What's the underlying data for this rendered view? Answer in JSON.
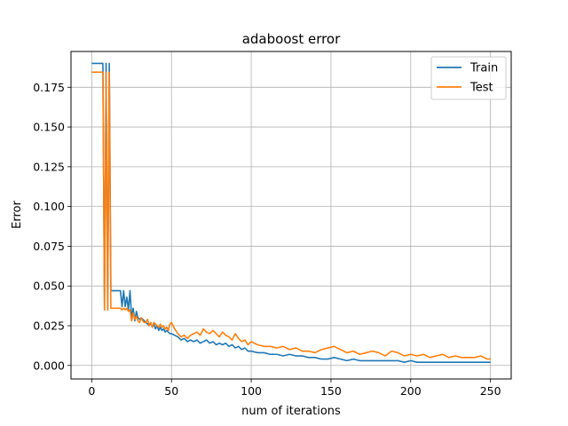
{
  "chart_data": {
    "type": "line",
    "title": "adaboost error",
    "xlabel": "num of iterations",
    "ylabel": "Error",
    "xlim": [
      -13,
      263
    ],
    "ylim": [
      -0.0085,
      0.1975
    ],
    "xticks": [
      0,
      50,
      100,
      150,
      200,
      250
    ],
    "yticks": [
      0.0,
      0.025,
      0.05,
      0.075,
      0.1,
      0.125,
      0.15,
      0.175
    ],
    "ytick_labels": [
      "0.000",
      "0.025",
      "0.050",
      "0.075",
      "0.100",
      "0.125",
      "0.150",
      "0.175"
    ],
    "grid": true,
    "legend_position": "top-right",
    "series": [
      {
        "name": "Train",
        "color": "#1f77b4",
        "x": [
          0,
          1,
          2,
          3,
          4,
          5,
          6,
          7,
          8,
          9,
          10,
          11,
          12,
          13,
          14,
          15,
          16,
          17,
          18,
          19,
          20,
          21,
          22,
          23,
          24,
          25,
          26,
          27,
          28,
          29,
          30,
          31,
          32,
          33,
          34,
          35,
          36,
          37,
          38,
          39,
          40,
          41,
          42,
          43,
          44,
          45,
          46,
          47,
          48,
          49,
          50,
          52,
          54,
          56,
          58,
          60,
          62,
          64,
          66,
          68,
          70,
          72,
          74,
          76,
          78,
          80,
          82,
          84,
          86,
          88,
          90,
          92,
          94,
          96,
          98,
          100,
          104,
          108,
          112,
          116,
          120,
          124,
          128,
          132,
          136,
          140,
          144,
          148,
          152,
          156,
          160,
          164,
          168,
          172,
          176,
          180,
          184,
          188,
          192,
          196,
          200,
          204,
          208,
          212,
          216,
          220,
          224,
          228,
          232,
          236,
          240,
          244,
          248,
          250
        ],
        "y": [
          0.19,
          0.19,
          0.19,
          0.19,
          0.19,
          0.19,
          0.19,
          0.19,
          0.035,
          0.19,
          0.035,
          0.19,
          0.047,
          0.047,
          0.047,
          0.047,
          0.047,
          0.047,
          0.047,
          0.037,
          0.047,
          0.037,
          0.043,
          0.035,
          0.047,
          0.03,
          0.036,
          0.028,
          0.034,
          0.03,
          0.029,
          0.03,
          0.029,
          0.028,
          0.027,
          0.026,
          0.025,
          0.027,
          0.024,
          0.026,
          0.023,
          0.025,
          0.022,
          0.024,
          0.022,
          0.023,
          0.021,
          0.022,
          0.021,
          0.02,
          0.02,
          0.019,
          0.018,
          0.016,
          0.017,
          0.015,
          0.016,
          0.015,
          0.016,
          0.014,
          0.015,
          0.016,
          0.014,
          0.015,
          0.013,
          0.014,
          0.013,
          0.014,
          0.012,
          0.013,
          0.011,
          0.012,
          0.01,
          0.011,
          0.009,
          0.009,
          0.008,
          0.008,
          0.007,
          0.007,
          0.006,
          0.007,
          0.006,
          0.006,
          0.005,
          0.005,
          0.004,
          0.004,
          0.005,
          0.004,
          0.003,
          0.004,
          0.003,
          0.003,
          0.003,
          0.003,
          0.003,
          0.003,
          0.003,
          0.002,
          0.003,
          0.002,
          0.002,
          0.002,
          0.002,
          0.002,
          0.002,
          0.002,
          0.002,
          0.002,
          0.002,
          0.002,
          0.002,
          0.002
        ]
      },
      {
        "name": "Test",
        "color": "#ff7f0e",
        "x": [
          0,
          1,
          2,
          3,
          4,
          5,
          6,
          7,
          8,
          9,
          10,
          11,
          12,
          13,
          14,
          15,
          16,
          17,
          18,
          19,
          20,
          21,
          22,
          23,
          24,
          25,
          26,
          27,
          28,
          29,
          30,
          31,
          32,
          33,
          34,
          35,
          36,
          37,
          38,
          39,
          40,
          41,
          42,
          43,
          44,
          45,
          46,
          47,
          48,
          49,
          50,
          52,
          54,
          56,
          58,
          60,
          62,
          64,
          66,
          68,
          70,
          72,
          74,
          76,
          78,
          80,
          82,
          84,
          86,
          88,
          90,
          92,
          94,
          96,
          98,
          100,
          104,
          108,
          112,
          116,
          120,
          124,
          128,
          132,
          136,
          140,
          144,
          148,
          152,
          156,
          160,
          164,
          168,
          172,
          176,
          180,
          184,
          188,
          192,
          196,
          200,
          204,
          208,
          212,
          216,
          220,
          224,
          228,
          232,
          236,
          240,
          244,
          248,
          250
        ],
        "y": [
          0.1845,
          0.1845,
          0.1845,
          0.1845,
          0.1845,
          0.1845,
          0.1845,
          0.1845,
          0.035,
          0.1845,
          0.035,
          0.1845,
          0.036,
          0.036,
          0.036,
          0.036,
          0.036,
          0.036,
          0.036,
          0.035,
          0.036,
          0.035,
          0.036,
          0.034,
          0.035,
          0.028,
          0.033,
          0.029,
          0.031,
          0.028,
          0.027,
          0.03,
          0.028,
          0.027,
          0.027,
          0.029,
          0.025,
          0.027,
          0.024,
          0.027,
          0.026,
          0.025,
          0.024,
          0.026,
          0.024,
          0.025,
          0.023,
          0.024,
          0.022,
          0.026,
          0.027,
          0.023,
          0.02,
          0.018,
          0.019,
          0.017,
          0.019,
          0.02,
          0.021,
          0.019,
          0.023,
          0.021,
          0.02,
          0.022,
          0.02,
          0.018,
          0.021,
          0.019,
          0.018,
          0.016,
          0.02,
          0.017,
          0.015,
          0.016,
          0.013,
          0.015,
          0.013,
          0.012,
          0.012,
          0.011,
          0.012,
          0.01,
          0.011,
          0.009,
          0.009,
          0.008,
          0.01,
          0.011,
          0.012,
          0.01,
          0.008,
          0.009,
          0.007,
          0.008,
          0.009,
          0.008,
          0.006,
          0.009,
          0.008,
          0.006,
          0.007,
          0.006,
          0.007,
          0.005,
          0.006,
          0.007,
          0.005,
          0.006,
          0.005,
          0.005,
          0.005,
          0.006,
          0.004,
          0.004
        ]
      }
    ]
  }
}
